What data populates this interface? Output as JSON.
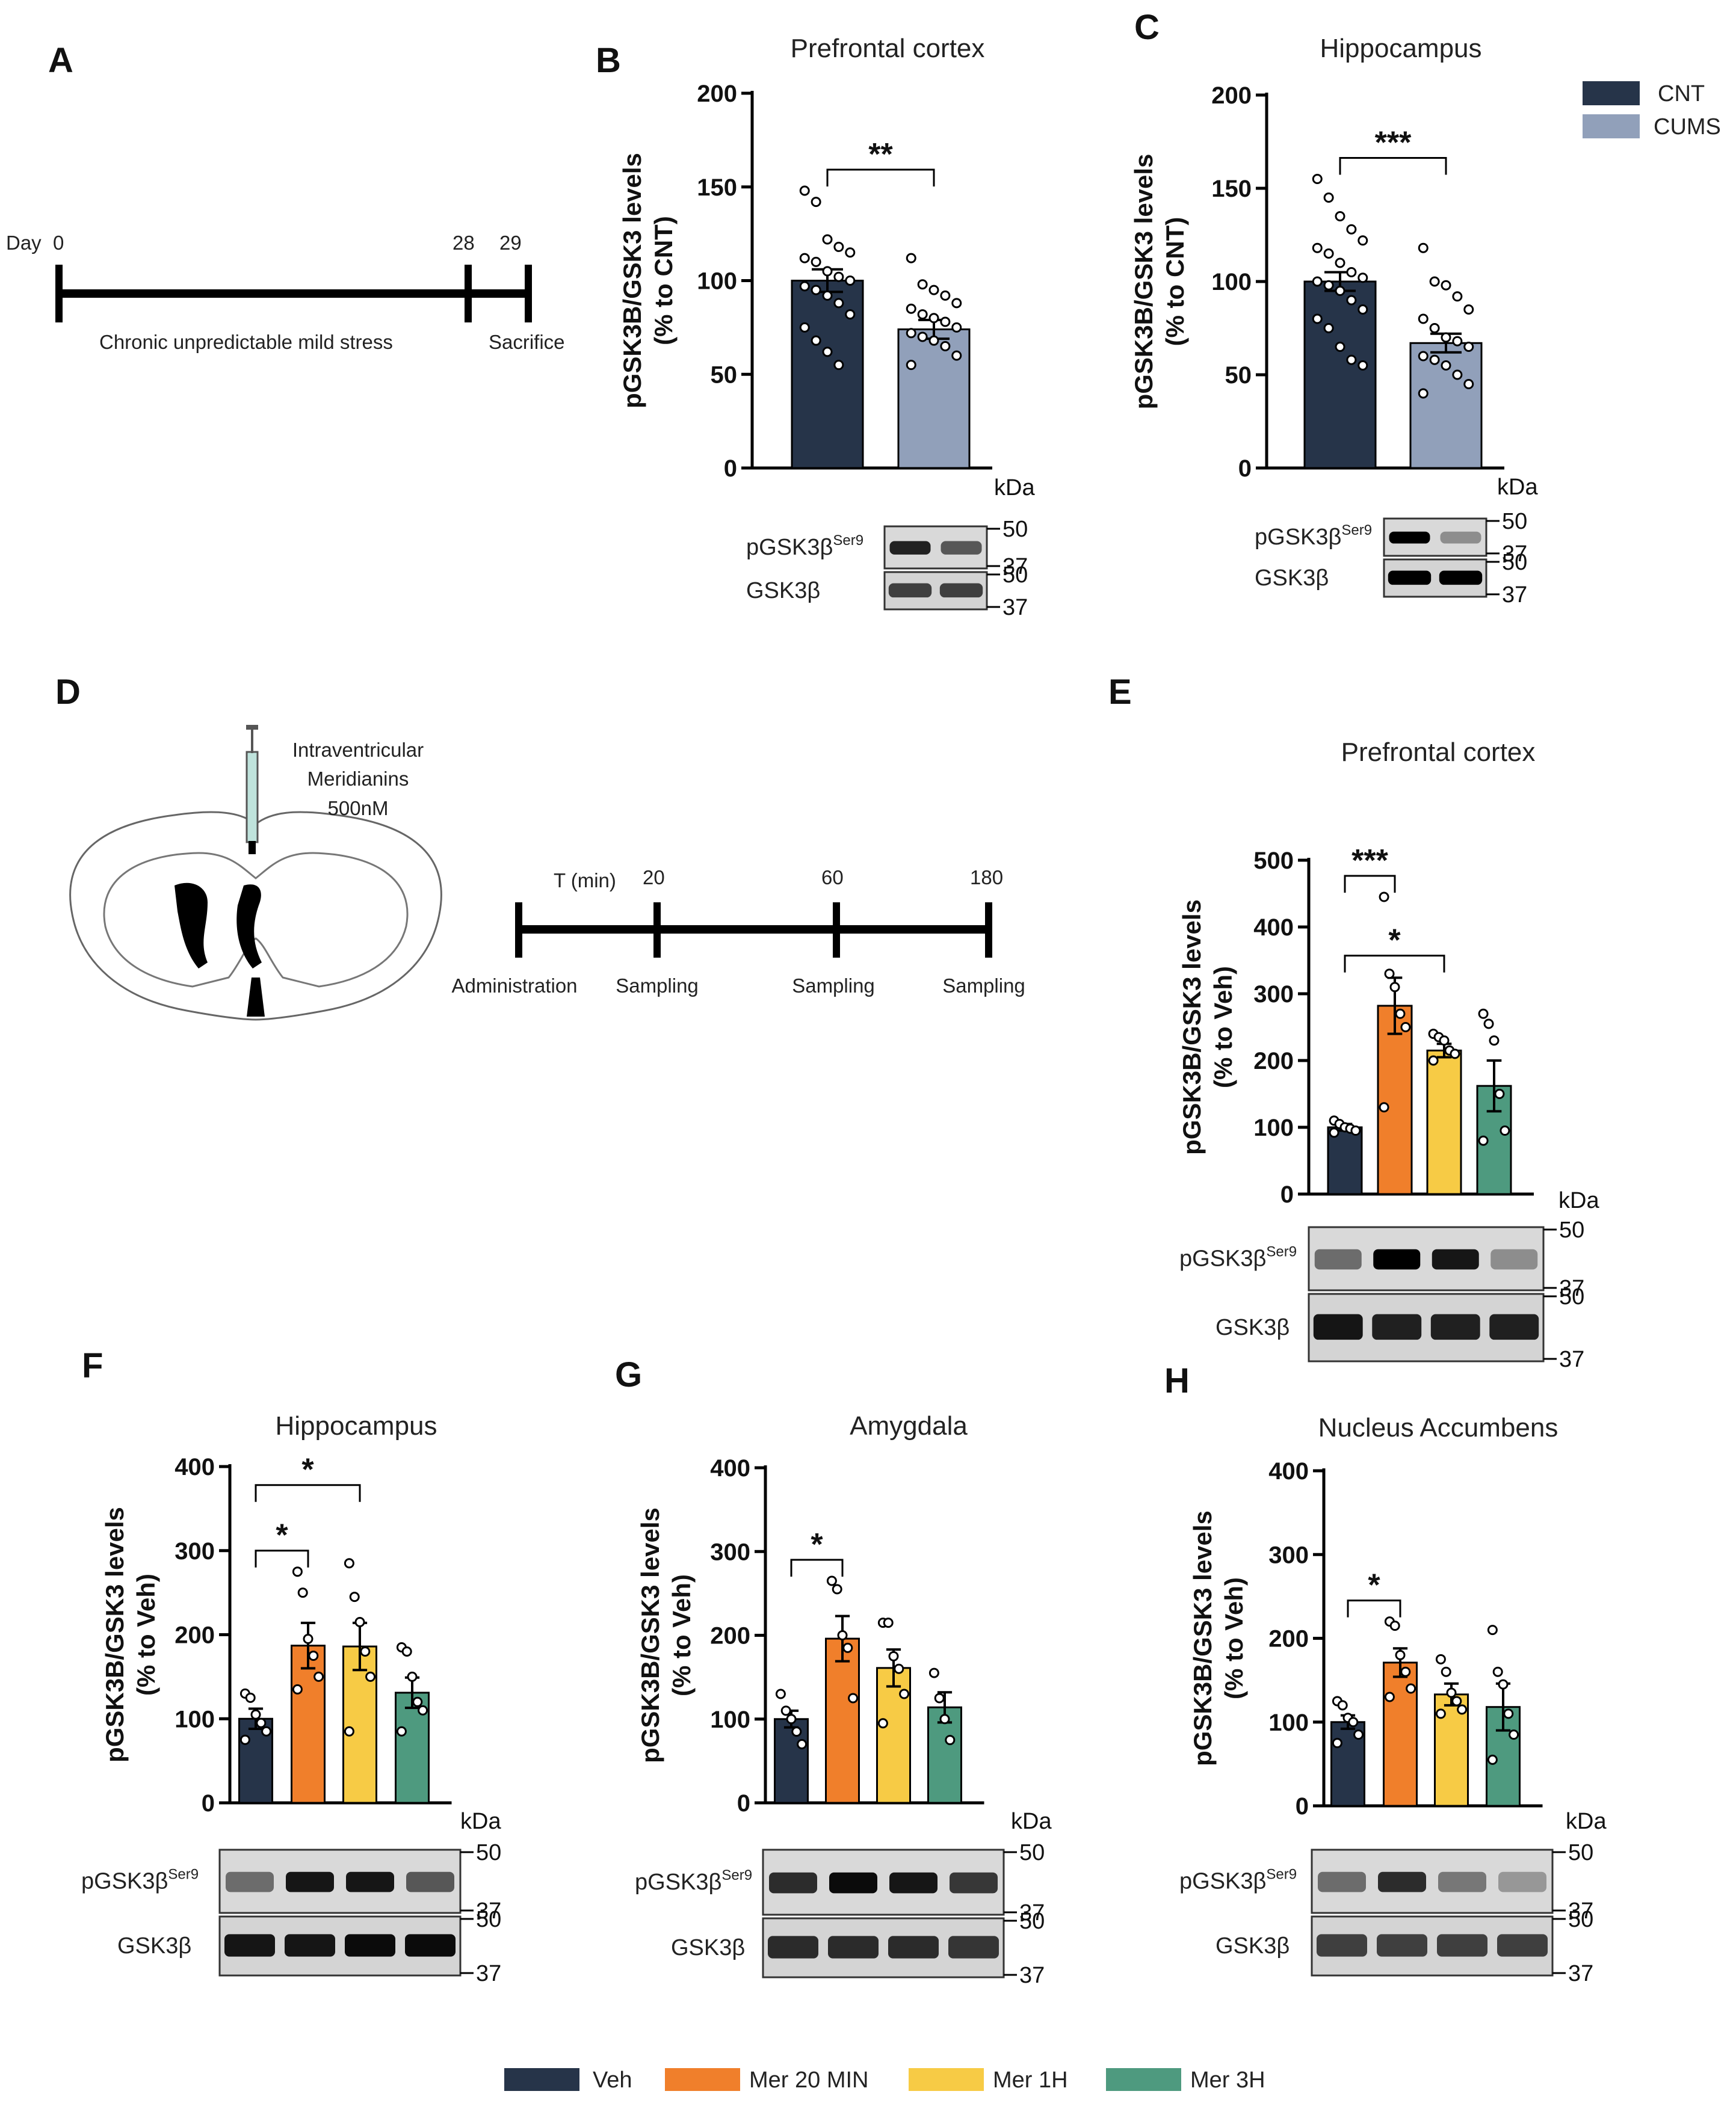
{
  "panel_letters": [
    "A",
    "B",
    "C",
    "D",
    "E",
    "F",
    "G",
    "H"
  ],
  "colors": {
    "cnt": "#263449",
    "cums": "#91A0BA",
    "veh": "#263449",
    "mer20": "#F07F2B",
    "mer1h": "#F7CB45",
    "mer3h": "#4E9A7F"
  },
  "legend_top": [
    {
      "label": "CNT",
      "color": "#263449"
    },
    {
      "label": "CUMS",
      "color": "#91A0BA"
    }
  ],
  "legend_bottom": [
    {
      "label": "Veh",
      "color": "#263449"
    },
    {
      "label": "Mer 20 MIN",
      "color": "#F07F2B"
    },
    {
      "label": "Mer 1H",
      "color": "#F7CB45"
    },
    {
      "label": "Mer 3H",
      "color": "#4E9A7F"
    }
  ],
  "timeline_a": {
    "day_label": "Day",
    "ticks": [
      "0",
      "28",
      "29"
    ],
    "stress_label": "Chronic unpredictable  mild stress",
    "sacrifice_label": "Sacrifice"
  },
  "injection": {
    "line1": "Intraventricular",
    "line2": "Meridianins",
    "line3": "500nM"
  },
  "timeline_d": {
    "t_label": "T (min)",
    "ticks": [
      "20",
      "60",
      "180"
    ],
    "events": [
      "Administration",
      "Sampling",
      "Sampling",
      "Sampling"
    ]
  },
  "blot_labels": {
    "pgsk": "pGSK3β",
    "ser": "Ser9",
    "gsk": "GSK3β",
    "kda": "kDa",
    "m50": "50",
    "m37": "37"
  },
  "ylabel_line1": "pGSK3B/GSK3 levels",
  "chart_data": [
    {
      "panel": "B",
      "type": "bar",
      "title": "Prefrontal cortex",
      "ylabel_line2": "(% to  CNT)",
      "categories": [
        "CNT",
        "CUMS"
      ],
      "values": [
        100,
        74
      ],
      "sem": [
        6,
        5
      ],
      "ylim": [
        0,
        200
      ],
      "yticks": [
        0,
        50,
        100,
        150,
        200
      ],
      "points": [
        [
          148,
          142,
          122,
          118,
          115,
          112,
          110,
          105,
          102,
          100,
          97,
          95,
          92,
          88,
          82,
          75,
          68,
          62,
          55
        ],
        [
          112,
          98,
          95,
          92,
          88,
          85,
          82,
          80,
          78,
          75,
          72,
          70,
          68,
          65,
          60,
          55
        ]
      ],
      "significance": [
        {
          "from": 0,
          "to": 1,
          "label": "**"
        }
      ]
    },
    {
      "panel": "C",
      "type": "bar",
      "title": "Hippocampus",
      "ylabel_line2": "(% to  CNT)",
      "categories": [
        "CNT",
        "CUMS"
      ],
      "values": [
        100,
        67
      ],
      "sem": [
        5,
        5
      ],
      "ylim": [
        0,
        200
      ],
      "yticks": [
        0,
        50,
        100,
        150,
        200
      ],
      "points": [
        [
          155,
          145,
          135,
          128,
          122,
          118,
          115,
          110,
          105,
          102,
          100,
          98,
          95,
          90,
          85,
          80,
          75,
          65,
          58,
          55
        ],
        [
          118,
          100,
          98,
          92,
          85,
          80,
          75,
          70,
          68,
          65,
          60,
          58,
          55,
          50,
          45,
          40
        ]
      ],
      "significance": [
        {
          "from": 0,
          "to": 1,
          "label": "***"
        }
      ]
    },
    {
      "panel": "E",
      "type": "bar",
      "title": "Prefrontal cortex",
      "ylabel_line2": "(% to  Veh)",
      "categories": [
        "Veh",
        "Mer 20 MIN",
        "Mer 1H",
        "Mer 3H"
      ],
      "values": [
        100,
        282,
        215,
        162
      ],
      "sem": [
        5,
        42,
        10,
        38
      ],
      "ylim": [
        0,
        500
      ],
      "yticks": [
        0,
        100,
        200,
        300,
        400,
        500
      ],
      "points": [
        [
          110,
          105,
          100,
          98,
          95,
          92
        ],
        [
          445,
          330,
          310,
          270,
          250,
          130
        ],
        [
          240,
          235,
          230,
          215,
          210,
          200
        ],
        [
          270,
          255,
          230,
          150,
          95,
          80
        ]
      ],
      "significance": [
        {
          "from": 0,
          "to": 1,
          "label": "***"
        },
        {
          "from": 0,
          "to": 2,
          "label": "*"
        }
      ]
    },
    {
      "panel": "F",
      "type": "bar",
      "title": "Hippocampus",
      "ylabel_line2": "(% to  Veh)",
      "categories": [
        "Veh",
        "Mer 20 MIN",
        "Mer 1H",
        "Mer 3H"
      ],
      "values": [
        100,
        187,
        186,
        131
      ],
      "sem": [
        12,
        27,
        28,
        18
      ],
      "ylim": [
        0,
        400
      ],
      "yticks": [
        0,
        100,
        200,
        300,
        400
      ],
      "points": [
        [
          130,
          125,
          105,
          95,
          85,
          75
        ],
        [
          275,
          250,
          195,
          175,
          150,
          135
        ],
        [
          285,
          245,
          215,
          180,
          150,
          85
        ],
        [
          185,
          180,
          150,
          120,
          110,
          85
        ]
      ],
      "significance": [
        {
          "from": 0,
          "to": 1,
          "label": "*"
        },
        {
          "from": 0,
          "to": 2,
          "label": "*"
        }
      ]
    },
    {
      "panel": "G",
      "type": "bar",
      "title": "Amygdala",
      "ylabel_line2": "(% to  Veh)",
      "categories": [
        "Veh",
        "Mer 20 MIN",
        "Mer 1H",
        "Mer 3H"
      ],
      "values": [
        100,
        196,
        161,
        114
      ],
      "sem": [
        10,
        27,
        22,
        18
      ],
      "ylim": [
        0,
        400
      ],
      "yticks": [
        0,
        100,
        200,
        300,
        400
      ],
      "points": [
        [
          130,
          110,
          100,
          85,
          70
        ],
        [
          265,
          255,
          200,
          185,
          125
        ],
        [
          215,
          215,
          175,
          160,
          130,
          95
        ],
        [
          155,
          125,
          100,
          75
        ]
      ],
      "significance": [
        {
          "from": 0,
          "to": 1,
          "label": "*"
        }
      ]
    },
    {
      "panel": "H",
      "type": "bar",
      "title": "Nucleus Accumbens",
      "ylabel_line2": "(% to  Veh)",
      "categories": [
        "Veh",
        "Mer 20 MIN",
        "Mer 1H",
        "Mer 3H"
      ],
      "values": [
        100,
        171,
        133,
        118
      ],
      "sem": [
        8,
        17,
        13,
        28
      ],
      "ylim": [
        0,
        400
      ],
      "yticks": [
        0,
        100,
        200,
        300,
        400
      ],
      "points": [
        [
          125,
          120,
          105,
          100,
          85,
          75
        ],
        [
          220,
          215,
          180,
          160,
          140,
          130
        ],
        [
          175,
          160,
          135,
          125,
          115,
          110
        ],
        [
          210,
          160,
          145,
          110,
          85,
          55
        ]
      ],
      "significance": [
        {
          "from": 0,
          "to": 1,
          "label": "*"
        }
      ]
    }
  ]
}
